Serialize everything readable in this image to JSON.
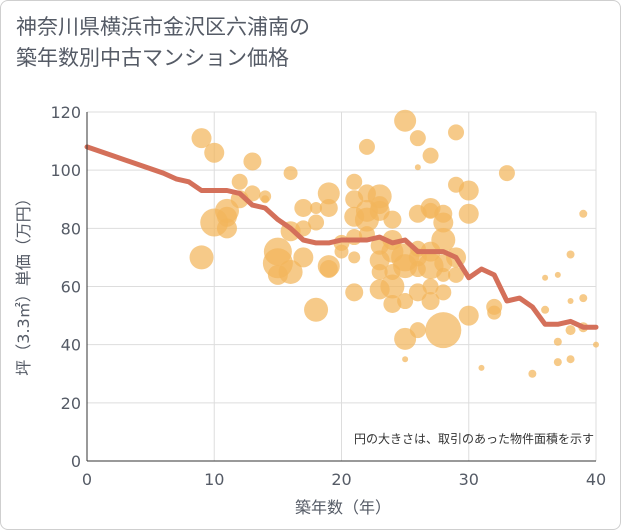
{
  "title": {
    "line1": "神奈川県横浜市金沢区六浦南の",
    "line2": "築年数別中古マンション価格"
  },
  "chart_data": {
    "type": "scatter",
    "xlabel": "築年数（年）",
    "ylabel": "坪（3.3㎡）単価（万円）",
    "xlim": [
      0,
      40
    ],
    "ylim": [
      0,
      120
    ],
    "xticks": [
      0,
      10,
      20,
      30,
      40
    ],
    "yticks": [
      0,
      20,
      40,
      60,
      80,
      100,
      120
    ],
    "grid": true,
    "note": "円の大きさは、取引のあった物件面積を示す",
    "colors": {
      "bubble": "#f2b65c",
      "line": "#d4705a",
      "grid": "#dddddd"
    },
    "trend_line": {
      "x": [
        0,
        2,
        4,
        6,
        7,
        8,
        9,
        10,
        11,
        12,
        13,
        14,
        15,
        16,
        17,
        18,
        19,
        20,
        21,
        22,
        23,
        24,
        25,
        26,
        27,
        28,
        29,
        30,
        31,
        32,
        33,
        34,
        35,
        36,
        37,
        38,
        39,
        40
      ],
      "y": [
        108,
        105,
        102,
        99,
        97,
        96,
        93,
        93,
        93,
        92,
        88,
        87,
        83,
        80,
        76,
        75,
        75,
        76,
        76,
        76,
        77,
        75,
        76,
        72,
        72,
        72,
        70,
        63,
        66,
        64,
        55,
        56,
        53,
        47,
        47,
        48,
        46,
        46
      ]
    },
    "bubbles": [
      {
        "x": 9,
        "y": 70,
        "s": 12
      },
      {
        "x": 9,
        "y": 111,
        "s": 10
      },
      {
        "x": 10,
        "y": 106,
        "s": 10
      },
      {
        "x": 10,
        "y": 82,
        "s": 14
      },
      {
        "x": 11,
        "y": 86,
        "s": 12
      },
      {
        "x": 11,
        "y": 80,
        "s": 10
      },
      {
        "x": 11,
        "y": 84,
        "s": 10
      },
      {
        "x": 12,
        "y": 96,
        "s": 8
      },
      {
        "x": 12,
        "y": 90,
        "s": 9
      },
      {
        "x": 13,
        "y": 103,
        "s": 9
      },
      {
        "x": 13,
        "y": 92,
        "s": 8
      },
      {
        "x": 14,
        "y": 91,
        "s": 6
      },
      {
        "x": 14,
        "y": 90,
        "s": 4
      },
      {
        "x": 15,
        "y": 68,
        "s": 15
      },
      {
        "x": 15,
        "y": 72,
        "s": 14
      },
      {
        "x": 15,
        "y": 64,
        "s": 10
      },
      {
        "x": 16,
        "y": 99,
        "s": 7
      },
      {
        "x": 16,
        "y": 79,
        "s": 10
      },
      {
        "x": 16,
        "y": 65,
        "s": 12
      },
      {
        "x": 17,
        "y": 87,
        "s": 9
      },
      {
        "x": 17,
        "y": 80,
        "s": 8
      },
      {
        "x": 17,
        "y": 70,
        "s": 10
      },
      {
        "x": 18,
        "y": 52,
        "s": 12
      },
      {
        "x": 18,
        "y": 82,
        "s": 8
      },
      {
        "x": 18,
        "y": 87,
        "s": 6
      },
      {
        "x": 19,
        "y": 92,
        "s": 11
      },
      {
        "x": 19,
        "y": 87,
        "s": 9
      },
      {
        "x": 19,
        "y": 67,
        "s": 11
      },
      {
        "x": 19,
        "y": 66,
        "s": 9
      },
      {
        "x": 20,
        "y": 72,
        "s": 7
      },
      {
        "x": 20,
        "y": 75,
        "s": 8
      },
      {
        "x": 21,
        "y": 96,
        "s": 8
      },
      {
        "x": 21,
        "y": 90,
        "s": 9
      },
      {
        "x": 21,
        "y": 84,
        "s": 10
      },
      {
        "x": 21,
        "y": 77,
        "s": 8
      },
      {
        "x": 21,
        "y": 58,
        "s": 9
      },
      {
        "x": 21,
        "y": 70,
        "s": 6
      },
      {
        "x": 22,
        "y": 108,
        "s": 8
      },
      {
        "x": 22,
        "y": 92,
        "s": 9
      },
      {
        "x": 22,
        "y": 86,
        "s": 11
      },
      {
        "x": 22,
        "y": 83,
        "s": 12
      },
      {
        "x": 22,
        "y": 78,
        "s": 8
      },
      {
        "x": 23,
        "y": 91,
        "s": 12
      },
      {
        "x": 23,
        "y": 88,
        "s": 9
      },
      {
        "x": 23,
        "y": 86,
        "s": 10
      },
      {
        "x": 23,
        "y": 74,
        "s": 9
      },
      {
        "x": 23,
        "y": 69,
        "s": 10
      },
      {
        "x": 23,
        "y": 65,
        "s": 8
      },
      {
        "x": 23,
        "y": 59,
        "s": 10
      },
      {
        "x": 24,
        "y": 83,
        "s": 9
      },
      {
        "x": 24,
        "y": 76,
        "s": 10
      },
      {
        "x": 24,
        "y": 72,
        "s": 11
      },
      {
        "x": 24,
        "y": 60,
        "s": 12
      },
      {
        "x": 24,
        "y": 54,
        "s": 9
      },
      {
        "x": 24,
        "y": 65,
        "s": 8
      },
      {
        "x": 25,
        "y": 117,
        "s": 11
      },
      {
        "x": 25,
        "y": 70,
        "s": 14
      },
      {
        "x": 25,
        "y": 67,
        "s": 12
      },
      {
        "x": 25,
        "y": 55,
        "s": 8
      },
      {
        "x": 25,
        "y": 42,
        "s": 11
      },
      {
        "x": 25,
        "y": 35,
        "s": 3
      },
      {
        "x": 26,
        "y": 111,
        "s": 8
      },
      {
        "x": 26,
        "y": 85,
        "s": 9
      },
      {
        "x": 26,
        "y": 73,
        "s": 8
      },
      {
        "x": 26,
        "y": 70,
        "s": 9
      },
      {
        "x": 26,
        "y": 66,
        "s": 8
      },
      {
        "x": 26,
        "y": 58,
        "s": 9
      },
      {
        "x": 26,
        "y": 45,
        "s": 8
      },
      {
        "x": 26,
        "y": 101,
        "s": 3
      },
      {
        "x": 27,
        "y": 105,
        "s": 8
      },
      {
        "x": 27,
        "y": 87,
        "s": 10
      },
      {
        "x": 27,
        "y": 86,
        "s": 8
      },
      {
        "x": 27,
        "y": 72,
        "s": 10
      },
      {
        "x": 27,
        "y": 67,
        "s": 13
      },
      {
        "x": 27,
        "y": 60,
        "s": 8
      },
      {
        "x": 27,
        "y": 55,
        "s": 9
      },
      {
        "x": 28,
        "y": 85,
        "s": 9
      },
      {
        "x": 28,
        "y": 82,
        "s": 10
      },
      {
        "x": 28,
        "y": 76,
        "s": 12
      },
      {
        "x": 28,
        "y": 68,
        "s": 9
      },
      {
        "x": 28,
        "y": 58,
        "s": 8
      },
      {
        "x": 28,
        "y": 45,
        "s": 18
      },
      {
        "x": 28,
        "y": 64,
        "s": 7
      },
      {
        "x": 29,
        "y": 113,
        "s": 8
      },
      {
        "x": 29,
        "y": 95,
        "s": 8
      },
      {
        "x": 29,
        "y": 70,
        "s": 10
      },
      {
        "x": 29,
        "y": 64,
        "s": 8
      },
      {
        "x": 30,
        "y": 93,
        "s": 10
      },
      {
        "x": 30,
        "y": 85,
        "s": 10
      },
      {
        "x": 30,
        "y": 50,
        "s": 10
      },
      {
        "x": 31,
        "y": 32,
        "s": 3
      },
      {
        "x": 32,
        "y": 53,
        "s": 8
      },
      {
        "x": 32,
        "y": 51,
        "s": 7
      },
      {
        "x": 33,
        "y": 99,
        "s": 8
      },
      {
        "x": 35,
        "y": 30,
        "s": 4
      },
      {
        "x": 36,
        "y": 63,
        "s": 3
      },
      {
        "x": 36,
        "y": 52,
        "s": 4
      },
      {
        "x": 37,
        "y": 64,
        "s": 3
      },
      {
        "x": 37,
        "y": 41,
        "s": 4
      },
      {
        "x": 37,
        "y": 34,
        "s": 4
      },
      {
        "x": 38,
        "y": 71,
        "s": 4
      },
      {
        "x": 38,
        "y": 55,
        "s": 3
      },
      {
        "x": 38,
        "y": 45,
        "s": 5
      },
      {
        "x": 38,
        "y": 35,
        "s": 4
      },
      {
        "x": 39,
        "y": 85,
        "s": 4
      },
      {
        "x": 39,
        "y": 56,
        "s": 4
      },
      {
        "x": 39,
        "y": 46,
        "s": 5
      },
      {
        "x": 40,
        "y": 40,
        "s": 3
      }
    ]
  }
}
